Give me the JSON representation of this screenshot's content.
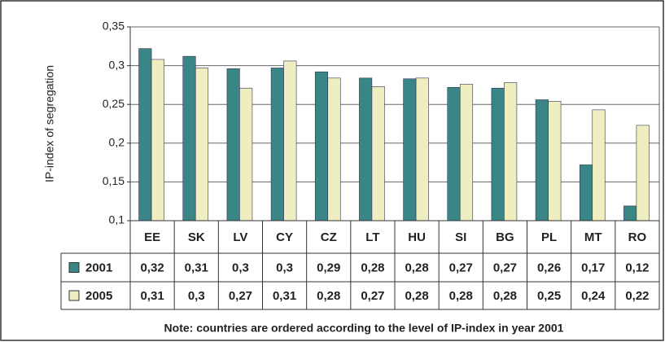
{
  "chart_data": {
    "type": "bar",
    "ylabel": "IP-index of segregation",
    "note": "Note: countries are ordered according to the level of IP-index in year 2001",
    "categories": [
      "EE",
      "SK",
      "LV",
      "CY",
      "CZ",
      "LT",
      "HU",
      "SI",
      "BG",
      "PL",
      "MT",
      "RO"
    ],
    "series": [
      {
        "name": "2001",
        "color": "#3a8585",
        "values": [
          0.322,
          0.312,
          0.296,
          0.297,
          0.292,
          0.284,
          0.283,
          0.272,
          0.271,
          0.256,
          0.172,
          0.119
        ],
        "value_labels": [
          "0,32",
          "0,31",
          "0,3",
          "0,3",
          "0,29",
          "0,28",
          "0,28",
          "0,27",
          "0,27",
          "0,26",
          "0,17",
          "0,12"
        ]
      },
      {
        "name": "2005",
        "color": "#eeeec0",
        "values": [
          0.308,
          0.297,
          0.271,
          0.306,
          0.284,
          0.273,
          0.284,
          0.276,
          0.278,
          0.254,
          0.243,
          0.223
        ],
        "value_labels": [
          "0,31",
          "0,3",
          "0,27",
          "0,31",
          "0,28",
          "0,27",
          "0,28",
          "0,28",
          "0,28",
          "0,25",
          "0,24",
          "0,22"
        ]
      }
    ],
    "ylim": [
      0.1,
      0.35
    ],
    "yticks": [
      {
        "value": 0.1,
        "label": "0,1"
      },
      {
        "value": 0.15,
        "label": "0,15"
      },
      {
        "value": 0.2,
        "label": "0,2"
      },
      {
        "value": 0.25,
        "label": "0,25"
      },
      {
        "value": 0.3,
        "label": "0,3"
      },
      {
        "value": 0.35,
        "label": "0,35"
      }
    ],
    "grid": true
  }
}
